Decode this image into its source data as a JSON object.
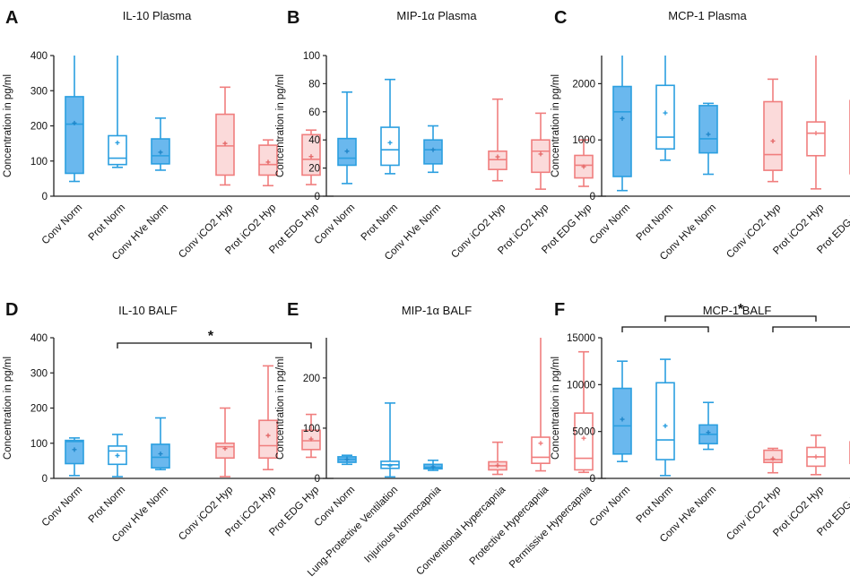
{
  "colors": {
    "blue_stroke": "#2b9fe0",
    "blue_fill": "#6ab8ee",
    "red_stroke": "#f07e7e",
    "red_fill": "#fbdada",
    "axis": "#222222"
  },
  "chart_data": [
    {
      "id": "A",
      "letter": "A",
      "type": "boxplot",
      "title": "IL-10 Plasma",
      "ylabel": "Concentration in pg/ml",
      "ylim": [
        0,
        400
      ],
      "yticks": [
        0,
        100,
        200,
        300,
        400
      ],
      "ytick_labels": [
        "0",
        "100",
        "200",
        "300",
        "400"
      ],
      "categories": [
        "Conv Norm",
        "Prot Norm",
        "Conv HVe Norm",
        "Conv iCO2 Hyp",
        "Prot iCO2 Hyp",
        "Prot EDG Hyp"
      ],
      "boxes": [
        {
          "category": "Conv Norm",
          "group": "norm",
          "filled": true,
          "min": 42,
          "q1": 65,
          "median": 205,
          "q3": 283,
          "max": 400,
          "mean": 208
        },
        {
          "category": "Prot Norm",
          "group": "norm",
          "filled": false,
          "min": 82,
          "q1": 90,
          "median": 108,
          "q3": 172,
          "max": 400,
          "mean": 152
        },
        {
          "category": "Conv HVe Norm",
          "group": "norm",
          "filled": true,
          "min": 74,
          "q1": 92,
          "median": 115,
          "q3": 163,
          "max": 222,
          "mean": 125
        },
        {
          "category": "Conv iCO2 Hyp",
          "group": "hyp",
          "filled": true,
          "min": 32,
          "q1": 60,
          "median": 143,
          "q3": 233,
          "max": 310,
          "mean": 150
        },
        {
          "category": "Prot iCO2 Hyp",
          "group": "hyp",
          "filled": true,
          "min": 30,
          "q1": 60,
          "median": 90,
          "q3": 145,
          "max": 160,
          "mean": 97
        },
        {
          "category": "Prot EDG Hyp",
          "group": "hyp",
          "filled": true,
          "min": 33,
          "q1": 60,
          "median": 105,
          "q3": 175,
          "max": 188,
          "mean": 113
        }
      ],
      "significance": []
    },
    {
      "id": "B",
      "letter": "B",
      "type": "boxplot",
      "title": "MIP-1α Plasma",
      "ylabel": "Concentration in pg/ml",
      "ylim": [
        0,
        100
      ],
      "yticks": [
        0,
        20,
        40,
        60,
        80,
        100
      ],
      "ytick_labels": [
        "0",
        "20",
        "40",
        "60",
        "80",
        "100"
      ],
      "categories": [
        "Conv Norm",
        "Prot Norm",
        "Conv HVe Norm",
        "Conv iCO2 Hyp",
        "Prot iCO2 Hyp",
        "Prot EDG Hyp"
      ],
      "boxes": [
        {
          "category": "Conv Norm",
          "group": "norm",
          "filled": true,
          "min": 9,
          "q1": 22,
          "median": 27,
          "q3": 41,
          "max": 74,
          "mean": 32
        },
        {
          "category": "Prot Norm",
          "group": "norm",
          "filled": false,
          "min": 16,
          "q1": 22,
          "median": 33,
          "q3": 49,
          "max": 83,
          "mean": 38
        },
        {
          "category": "Conv HVe Norm",
          "group": "norm",
          "filled": true,
          "min": 17,
          "q1": 23,
          "median": 33,
          "q3": 40,
          "max": 50,
          "mean": 33
        },
        {
          "category": "Conv iCO2 Hyp",
          "group": "hyp",
          "filled": true,
          "min": 11,
          "q1": 19,
          "median": 26,
          "q3": 32,
          "max": 69,
          "mean": 28
        },
        {
          "category": "Prot iCO2 Hyp",
          "group": "hyp",
          "filled": true,
          "min": 5,
          "q1": 17,
          "median": 32,
          "q3": 40,
          "max": 59,
          "mean": 30
        },
        {
          "category": "Prot EDG Hyp",
          "group": "hyp",
          "filled": true,
          "min": 7,
          "q1": 13,
          "median": 22,
          "q3": 29,
          "max": 40,
          "mean": 21
        }
      ],
      "significance": []
    },
    {
      "id": "C",
      "letter": "C",
      "type": "boxplot",
      "title": "MCP-1 Plasma",
      "ylabel": "Concentration in pg/ml",
      "ylim": [
        0,
        2500
      ],
      "yticks": [
        0,
        1000,
        2000
      ],
      "ytick_labels": [
        "0",
        "1000",
        "2000"
      ],
      "categories": [
        "Conv Norm",
        "Prot Norm",
        "Conv HVe Norm",
        "Conv iCO2 Hyp",
        "Prot iCO2 Hyp",
        "Prot EDG Hyp"
      ],
      "boxes": [
        {
          "category": "Conv Norm",
          "group": "norm",
          "filled": true,
          "min": 100,
          "q1": 350,
          "median": 1500,
          "q3": 1950,
          "max": 2500,
          "mean": 1380
        },
        {
          "category": "Prot Norm",
          "group": "norm",
          "filled": false,
          "min": 640,
          "q1": 840,
          "median": 1050,
          "q3": 1970,
          "max": 2500,
          "mean": 1480
        },
        {
          "category": "Conv HVe Norm",
          "group": "norm",
          "filled": true,
          "min": 390,
          "q1": 770,
          "median": 1020,
          "q3": 1610,
          "max": 1650,
          "mean": 1100
        },
        {
          "category": "Conv iCO2 Hyp",
          "group": "hyp",
          "filled": true,
          "min": 260,
          "q1": 460,
          "median": 740,
          "q3": 1680,
          "max": 2080,
          "mean": 980
        },
        {
          "category": "Prot iCO2 Hyp",
          "group": "hyp",
          "filled": false,
          "min": 130,
          "q1": 720,
          "median": 1120,
          "q3": 1320,
          "max": 2500,
          "mean": 1120
        },
        {
          "category": "Prot EDG Hyp",
          "group": "hyp",
          "filled": false,
          "min": 150,
          "q1": 400,
          "median": 1170,
          "q3": 1700,
          "max": 2150,
          "mean": 1090
        }
      ],
      "significance": []
    },
    {
      "id": "D",
      "letter": "D",
      "type": "boxplot",
      "title": "IL-10 BALF",
      "ylabel": "Concentration in pg/ml",
      "ylim": [
        0,
        400
      ],
      "yticks": [
        0,
        100,
        200,
        300,
        400
      ],
      "ytick_labels": [
        "0",
        "100",
        "200",
        "300",
        "400"
      ],
      "categories": [
        "Conv Norm",
        "Prot Norm",
        "Conv HVe Norm",
        "Conv iCO2 Hyp",
        "Prot iCO2 Hyp",
        "Prot EDG Hyp"
      ],
      "boxes": [
        {
          "category": "Conv Norm",
          "group": "norm",
          "filled": true,
          "min": 8,
          "q1": 42,
          "median": 105,
          "q3": 108,
          "max": 115,
          "mean": 82
        },
        {
          "category": "Prot Norm",
          "group": "norm",
          "filled": false,
          "min": 5,
          "q1": 40,
          "median": 78,
          "q3": 92,
          "max": 125,
          "mean": 65
        },
        {
          "category": "Conv HVe Norm",
          "group": "norm",
          "filled": true,
          "min": 25,
          "q1": 30,
          "median": 60,
          "q3": 97,
          "max": 172,
          "mean": 70
        },
        {
          "category": "Conv iCO2 Hyp",
          "group": "hyp",
          "filled": true,
          "min": 5,
          "q1": 58,
          "median": 90,
          "q3": 100,
          "max": 200,
          "mean": 85
        },
        {
          "category": "Prot iCO2 Hyp",
          "group": "hyp",
          "filled": true,
          "min": 25,
          "q1": 58,
          "median": 93,
          "q3": 165,
          "max": 320,
          "mean": 122
        },
        {
          "category": "Prot EDG Hyp",
          "group": "hyp",
          "filled": true,
          "min": 60,
          "q1": 82,
          "median": 107,
          "q3": 137,
          "max": 182,
          "mean": 112
        }
      ],
      "significance": [
        {
          "from": "Prot Norm",
          "to": "Prot EDG Hyp",
          "label": "*",
          "level": 1
        }
      ]
    },
    {
      "id": "E",
      "letter": "E",
      "type": "boxplot",
      "title": "MIP-1α BALF",
      "ylabel": "Concentration in pg/ml",
      "ylim": [
        0,
        280
      ],
      "yticks": [
        0,
        100,
        200
      ],
      "ytick_labels": [
        "0",
        "100",
        "200"
      ],
      "categories": [
        "Conv Norm",
        "Lung-Protective Ventilation",
        "Injurious Normocapnia",
        "Conventional Hypercapnia",
        "Protective Hypercapnia",
        "Permissive Hypercapnia"
      ],
      "boxes": [
        {
          "category": "Conv Norm",
          "group": "norm",
          "filled": true,
          "min": 28,
          "q1": 32,
          "median": 38,
          "q3": 43,
          "max": 46,
          "mean": 38
        },
        {
          "category": "Lung-Protective Ventilation",
          "group": "norm",
          "filled": false,
          "min": 3,
          "q1": 20,
          "median": 27,
          "q3": 34,
          "max": 150,
          "mean": 25
        },
        {
          "category": "Injurious Normocapnia",
          "group": "norm",
          "filled": true,
          "min": 16,
          "q1": 19,
          "median": 22,
          "q3": 28,
          "max": 36,
          "mean": 23
        },
        {
          "category": "Conventional Hypercapnia",
          "group": "hyp",
          "filled": true,
          "min": 8,
          "q1": 17,
          "median": 25,
          "q3": 33,
          "max": 72,
          "mean": 26
        },
        {
          "category": "Protective Hypercapnia",
          "group": "hyp",
          "filled": false,
          "min": 15,
          "q1": 30,
          "median": 42,
          "q3": 82,
          "max": 280,
          "mean": 70
        },
        {
          "category": "Permissive Hypercapnia",
          "group": "hyp",
          "filled": false,
          "min": 12,
          "q1": 17,
          "median": 40,
          "q3": 130,
          "max": 252,
          "mean": 80
        }
      ],
      "significance": []
    },
    {
      "id": "F",
      "letter": "F",
      "type": "boxplot",
      "title": "MCP-1 BALF",
      "ylabel": "Concentration in pg/ml",
      "ylim": [
        0,
        15000
      ],
      "yticks": [
        0,
        5000,
        10000,
        15000
      ],
      "ytick_labels": [
        "0",
        "5000",
        "10000",
        "15000"
      ],
      "categories": [
        "Conv Norm",
        "Prot Norm",
        "Conv HVe Norm",
        "Conv iCO2 Hyp",
        "Prot iCO2 Hyp",
        "Prot EDG Hyp"
      ],
      "boxes": [
        {
          "category": "Conv Norm",
          "group": "norm",
          "filled": true,
          "min": 1800,
          "q1": 2600,
          "median": 5600,
          "q3": 9600,
          "max": 12500,
          "mean": 6300
        },
        {
          "category": "Prot Norm",
          "group": "norm",
          "filled": false,
          "min": 300,
          "q1": 2000,
          "median": 4100,
          "q3": 10200,
          "max": 12700,
          "mean": 5600
        },
        {
          "category": "Conv HVe Norm",
          "group": "norm",
          "filled": true,
          "min": 3100,
          "q1": 3700,
          "median": 4700,
          "q3": 5700,
          "max": 8100,
          "mean": 4900
        },
        {
          "category": "Conv iCO2 Hyp",
          "group": "hyp",
          "filled": true,
          "min": 600,
          "q1": 1700,
          "median": 2000,
          "q3": 3000,
          "max": 3200,
          "mean": 2100
        },
        {
          "category": "Prot iCO2 Hyp",
          "group": "hyp",
          "filled": false,
          "min": 400,
          "q1": 1300,
          "median": 2300,
          "q3": 3300,
          "max": 4600,
          "mean": 2300
        },
        {
          "category": "Prot EDG Hyp",
          "group": "hyp",
          "filled": false,
          "min": 1000,
          "q1": 1600,
          "median": 2000,
          "q3": 3900,
          "max": 4600,
          "mean": 2500
        }
      ],
      "significance": [
        {
          "from": "Conv Norm",
          "to": "Conv HVe Norm",
          "label": "",
          "level": 1
        },
        {
          "from": "Conv iCO2 Hyp",
          "to": "Prot EDG Hyp",
          "label": "",
          "level": 1
        },
        {
          "from": "Prot Norm",
          "to": "Prot iCO2 Hyp",
          "label": "*",
          "level": 2
        }
      ]
    }
  ]
}
